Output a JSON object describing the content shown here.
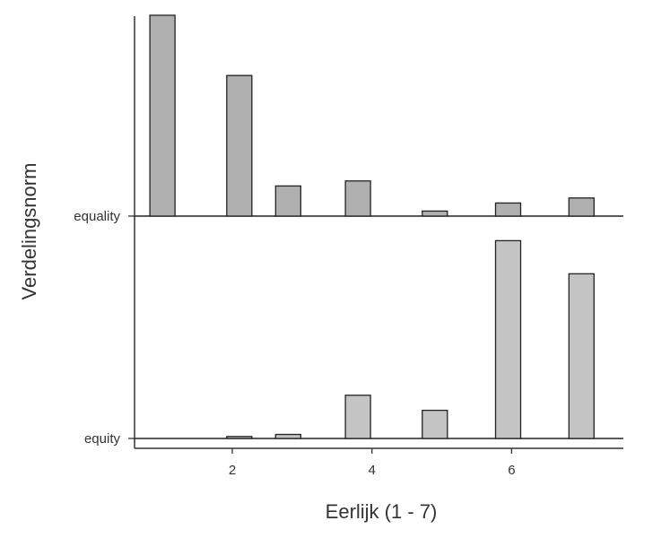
{
  "chart_data": {
    "type": "bar",
    "subtype": "ridgeline-histogram",
    "xlabel": "Eerlijk (1 - 7)",
    "ylabel": "Verdelingsnorm",
    "xlim": [
      0.6,
      7.6
    ],
    "x_ticks": [
      2,
      4,
      6
    ],
    "x_tick_labels": [
      "2",
      "4",
      "6"
    ],
    "bin_width": 0.36,
    "categories": [
      "equality",
      "equity"
    ],
    "grid": false,
    "legend": "none",
    "colors": {
      "fill": "#c4c4c4",
      "fill_dark": "#b0b0b0",
      "stroke": "#222222",
      "axis": "#333333"
    },
    "series": [
      {
        "name": "equality",
        "x": [
          1,
          2.1,
          2.8,
          3.8,
          4.9,
          5.95,
          7
        ],
        "values": [
          1.0,
          0.7,
          0.15,
          0.175,
          0.025,
          0.065,
          0.09
        ]
      },
      {
        "name": "equity",
        "x": [
          2.1,
          2.8,
          3.8,
          4.9,
          5.95,
          7
        ],
        "values": [
          0.01,
          0.02,
          0.215,
          0.14,
          0.985,
          0.82
        ]
      }
    ]
  }
}
